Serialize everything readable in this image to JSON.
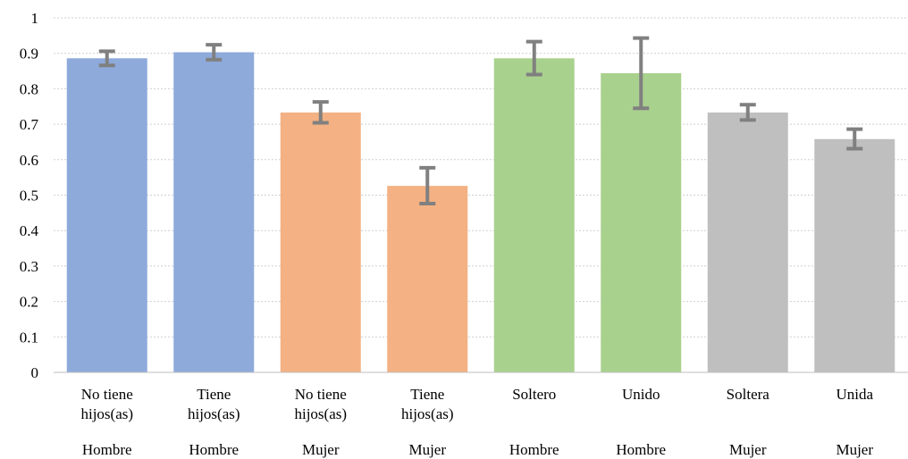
{
  "chart_data": {
    "type": "bar",
    "title": "",
    "xlabel": "",
    "ylabel": "",
    "ylim": [
      0,
      1
    ],
    "yticks": [
      "0",
      "0.1",
      "0.2",
      "0.3",
      "0.4",
      "0.5",
      "0.6",
      "0.7",
      "0.8",
      "0.9",
      "1"
    ],
    "grid": true,
    "legend": "none",
    "categories": [
      {
        "label_lines": [
          "No tiene",
          "hijos(as)"
        ],
        "group": "Hombre",
        "value": 0.886,
        "err_low": 0.866,
        "err_high": 0.906,
        "color": "#8eaadb"
      },
      {
        "label_lines": [
          "Tiene",
          "hijos(as)"
        ],
        "group": "Hombre",
        "value": 0.903,
        "err_low": 0.882,
        "err_high": 0.924,
        "color": "#8eaadb"
      },
      {
        "label_lines": [
          "No tiene",
          "hijos(as)"
        ],
        "group": "Mujer",
        "value": 0.733,
        "err_low": 0.704,
        "err_high": 0.763,
        "color": "#f4b183"
      },
      {
        "label_lines": [
          "Tiene",
          "hijos(as)"
        ],
        "group": "Mujer",
        "value": 0.526,
        "err_low": 0.476,
        "err_high": 0.577,
        "color": "#f4b183"
      },
      {
        "label_lines": [
          "Soltero"
        ],
        "group": "Hombre",
        "value": 0.886,
        "err_low": 0.84,
        "err_high": 0.933,
        "color": "#a9d18e"
      },
      {
        "label_lines": [
          "Unido"
        ],
        "group": "Hombre",
        "value": 0.844,
        "err_low": 0.745,
        "err_high": 0.943,
        "color": "#a9d18e"
      },
      {
        "label_lines": [
          "Soltera"
        ],
        "group": "Mujer",
        "value": 0.733,
        "err_low": 0.712,
        "err_high": 0.755,
        "color": "#bfbfbf"
      },
      {
        "label_lines": [
          "Unida"
        ],
        "group": "Mujer",
        "value": 0.658,
        "err_low": 0.631,
        "err_high": 0.686,
        "color": "#bfbfbf"
      }
    ],
    "colors": {
      "error_bar": "#808080",
      "gridline": "#cfcfcf",
      "axis": "#bfbfbf"
    }
  }
}
